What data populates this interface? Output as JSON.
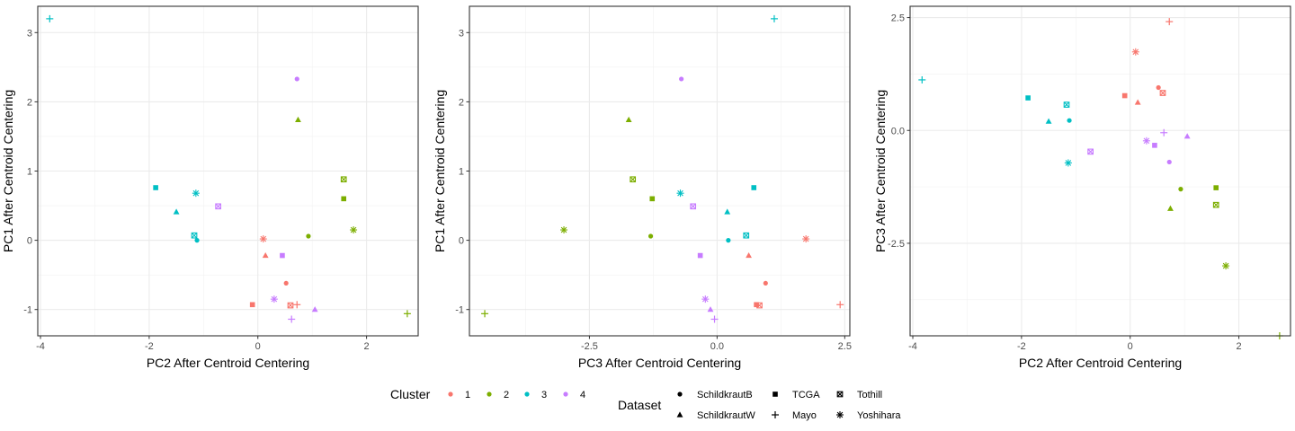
{
  "colors": {
    "1": "#F8766D",
    "2": "#7CAE00",
    "3": "#00BFC4",
    "4": "#C77CFF"
  },
  "legend": {
    "cluster_title": "Cluster",
    "cluster_labels": [
      "1",
      "2",
      "3",
      "4"
    ],
    "dataset_title": "Dataset",
    "dataset_labels": [
      "SchildkrautB",
      "TCGA",
      "Tothill",
      "SchildkrautW",
      "Mayo",
      "Yoshihara"
    ]
  },
  "chart_data": [
    {
      "type": "scatter",
      "title": "",
      "xlabel": "PC2 After Centroid Centering",
      "ylabel": "PC1 After Centroid Centering",
      "xlim": [
        -4.05,
        2.95
      ],
      "ylim": [
        -1.38,
        3.38
      ],
      "xticks": [
        -4,
        -2,
        0,
        2
      ],
      "xticklabels": [
        "-4",
        "-2",
        "0",
        "2"
      ],
      "yticks": [
        -1,
        0,
        1,
        2,
        3
      ],
      "yticklabels": [
        "-1",
        "0",
        "1",
        "2",
        "3"
      ],
      "grid": true,
      "points": [
        {
          "x": -3.83,
          "y": 3.2,
          "cluster": "3",
          "dataset": "Mayo"
        },
        {
          "x": 0.72,
          "y": 2.33,
          "cluster": "4",
          "dataset": "SchildkrautB"
        },
        {
          "x": 0.74,
          "y": 1.74,
          "cluster": "2",
          "dataset": "SchildkrautW"
        },
        {
          "x": 1.58,
          "y": 0.88,
          "cluster": "2",
          "dataset": "Tothill"
        },
        {
          "x": -1.88,
          "y": 0.76,
          "cluster": "3",
          "dataset": "TCGA"
        },
        {
          "x": -1.14,
          "y": 0.68,
          "cluster": "3",
          "dataset": "Yoshihara"
        },
        {
          "x": 1.58,
          "y": 0.6,
          "cluster": "2",
          "dataset": "TCGA"
        },
        {
          "x": -0.73,
          "y": 0.49,
          "cluster": "4",
          "dataset": "Tothill"
        },
        {
          "x": -1.5,
          "y": 0.41,
          "cluster": "3",
          "dataset": "SchildkrautW"
        },
        {
          "x": 1.76,
          "y": 0.15,
          "cluster": "2",
          "dataset": "Yoshihara"
        },
        {
          "x": -1.17,
          "y": 0.07,
          "cluster": "3",
          "dataset": "Tothill"
        },
        {
          "x": 0.93,
          "y": 0.06,
          "cluster": "2",
          "dataset": "SchildkrautB"
        },
        {
          "x": 0.1,
          "y": 0.02,
          "cluster": "1",
          "dataset": "Yoshihara"
        },
        {
          "x": -1.12,
          "y": 0.0,
          "cluster": "3",
          "dataset": "SchildkrautB"
        },
        {
          "x": 0.14,
          "y": -0.22,
          "cluster": "1",
          "dataset": "SchildkrautW"
        },
        {
          "x": 0.45,
          "y": -0.22,
          "cluster": "4",
          "dataset": "TCGA"
        },
        {
          "x": 0.52,
          "y": -0.62,
          "cluster": "1",
          "dataset": "SchildkrautB"
        },
        {
          "x": 0.3,
          "y": -0.85,
          "cluster": "4",
          "dataset": "Yoshihara"
        },
        {
          "x": -0.1,
          "y": -0.93,
          "cluster": "1",
          "dataset": "TCGA"
        },
        {
          "x": 0.72,
          "y": -0.93,
          "cluster": "1",
          "dataset": "Mayo"
        },
        {
          "x": 0.6,
          "y": -0.94,
          "cluster": "1",
          "dataset": "Tothill"
        },
        {
          "x": 1.05,
          "y": -1.0,
          "cluster": "4",
          "dataset": "SchildkrautW"
        },
        {
          "x": 2.75,
          "y": -1.06,
          "cluster": "2",
          "dataset": "Mayo"
        },
        {
          "x": 0.62,
          "y": -1.14,
          "cluster": "4",
          "dataset": "Mayo"
        }
      ]
    },
    {
      "type": "scatter",
      "title": "",
      "xlabel": "PC3 After Centroid Centering",
      "ylabel": "PC1 After Centroid Centering",
      "xlim": [
        -4.85,
        2.6
      ],
      "ylim": [
        -1.38,
        3.38
      ],
      "xticks": [
        -2.5,
        0.0,
        2.5
      ],
      "xticklabels": [
        "-2.5",
        "0.0",
        "2.5"
      ],
      "yticks": [
        -1,
        0,
        1,
        2,
        3
      ],
      "yticklabels": [
        "-1",
        "0",
        "1",
        "2",
        "3"
      ],
      "grid": true,
      "points": [
        {
          "x": 1.12,
          "y": 3.2,
          "cluster": "3",
          "dataset": "Mayo"
        },
        {
          "x": -0.7,
          "y": 2.33,
          "cluster": "4",
          "dataset": "SchildkrautB"
        },
        {
          "x": -1.73,
          "y": 1.74,
          "cluster": "2",
          "dataset": "SchildkrautW"
        },
        {
          "x": -1.65,
          "y": 0.88,
          "cluster": "2",
          "dataset": "Tothill"
        },
        {
          "x": 0.72,
          "y": 0.76,
          "cluster": "3",
          "dataset": "TCGA"
        },
        {
          "x": -0.72,
          "y": 0.68,
          "cluster": "3",
          "dataset": "Yoshihara"
        },
        {
          "x": -1.27,
          "y": 0.6,
          "cluster": "2",
          "dataset": "TCGA"
        },
        {
          "x": -0.47,
          "y": 0.49,
          "cluster": "4",
          "dataset": "Tothill"
        },
        {
          "x": 0.2,
          "y": 0.41,
          "cluster": "3",
          "dataset": "SchildkrautW"
        },
        {
          "x": -3.0,
          "y": 0.15,
          "cluster": "2",
          "dataset": "Yoshihara"
        },
        {
          "x": 0.57,
          "y": 0.07,
          "cluster": "3",
          "dataset": "Tothill"
        },
        {
          "x": -1.3,
          "y": 0.06,
          "cluster": "2",
          "dataset": "SchildkrautB"
        },
        {
          "x": 1.74,
          "y": 0.02,
          "cluster": "1",
          "dataset": "Yoshihara"
        },
        {
          "x": 0.22,
          "y": 0.0,
          "cluster": "3",
          "dataset": "SchildkrautB"
        },
        {
          "x": 0.62,
          "y": -0.22,
          "cluster": "1",
          "dataset": "SchildkrautW"
        },
        {
          "x": -0.33,
          "y": -0.22,
          "cluster": "4",
          "dataset": "TCGA"
        },
        {
          "x": 0.95,
          "y": -0.62,
          "cluster": "1",
          "dataset": "SchildkrautB"
        },
        {
          "x": -0.23,
          "y": -0.85,
          "cluster": "4",
          "dataset": "Yoshihara"
        },
        {
          "x": 0.77,
          "y": -0.93,
          "cluster": "1",
          "dataset": "TCGA"
        },
        {
          "x": 2.41,
          "y": -0.93,
          "cluster": "1",
          "dataset": "Mayo"
        },
        {
          "x": 0.83,
          "y": -0.94,
          "cluster": "1",
          "dataset": "Tothill"
        },
        {
          "x": -0.13,
          "y": -1.0,
          "cluster": "4",
          "dataset": "SchildkrautW"
        },
        {
          "x": -4.55,
          "y": -1.06,
          "cluster": "2",
          "dataset": "Mayo"
        },
        {
          "x": -0.05,
          "y": -1.14,
          "cluster": "4",
          "dataset": "Mayo"
        }
      ]
    },
    {
      "type": "scatter",
      "title": "",
      "xlabel": "PC2 After Centroid Centering",
      "ylabel": "PC3 After Centroid Centering",
      "xlim": [
        -4.05,
        2.95
      ],
      "ylim": [
        -4.55,
        2.75
      ],
      "xticks": [
        -4,
        -2,
        0,
        2
      ],
      "xticklabels": [
        "-4",
        "-2",
        "0",
        "2"
      ],
      "yticks": [
        -2.5,
        0.0,
        2.5
      ],
      "yticklabels": [
        "-2.5",
        "0.0",
        "2.5"
      ],
      "grid": true,
      "points": [
        {
          "x": 0.72,
          "y": 2.41,
          "cluster": "1",
          "dataset": "Mayo"
        },
        {
          "x": 0.1,
          "y": 1.74,
          "cluster": "1",
          "dataset": "Yoshihara"
        },
        {
          "x": -3.83,
          "y": 1.12,
          "cluster": "3",
          "dataset": "Mayo"
        },
        {
          "x": 0.52,
          "y": 0.95,
          "cluster": "1",
          "dataset": "SchildkrautB"
        },
        {
          "x": 0.6,
          "y": 0.83,
          "cluster": "1",
          "dataset": "Tothill"
        },
        {
          "x": -0.1,
          "y": 0.77,
          "cluster": "1",
          "dataset": "TCGA"
        },
        {
          "x": -1.88,
          "y": 0.72,
          "cluster": "3",
          "dataset": "TCGA"
        },
        {
          "x": 0.14,
          "y": 0.62,
          "cluster": "1",
          "dataset": "SchildkrautW"
        },
        {
          "x": -1.17,
          "y": 0.57,
          "cluster": "3",
          "dataset": "Tothill"
        },
        {
          "x": -1.12,
          "y": 0.22,
          "cluster": "3",
          "dataset": "SchildkrautB"
        },
        {
          "x": -1.5,
          "y": 0.2,
          "cluster": "3",
          "dataset": "SchildkrautW"
        },
        {
          "x": 0.62,
          "y": -0.05,
          "cluster": "4",
          "dataset": "Mayo"
        },
        {
          "x": 1.05,
          "y": -0.13,
          "cluster": "4",
          "dataset": "SchildkrautW"
        },
        {
          "x": 0.3,
          "y": -0.23,
          "cluster": "4",
          "dataset": "Yoshihara"
        },
        {
          "x": 0.45,
          "y": -0.33,
          "cluster": "4",
          "dataset": "TCGA"
        },
        {
          "x": -0.73,
          "y": -0.47,
          "cluster": "4",
          "dataset": "Tothill"
        },
        {
          "x": 0.72,
          "y": -0.7,
          "cluster": "4",
          "dataset": "SchildkrautB"
        },
        {
          "x": -1.14,
          "y": -0.72,
          "cluster": "3",
          "dataset": "Yoshihara"
        },
        {
          "x": 1.58,
          "y": -1.27,
          "cluster": "2",
          "dataset": "TCGA"
        },
        {
          "x": 0.93,
          "y": -1.3,
          "cluster": "2",
          "dataset": "SchildkrautB"
        },
        {
          "x": 1.58,
          "y": -1.65,
          "cluster": "2",
          "dataset": "Tothill"
        },
        {
          "x": 0.74,
          "y": -1.73,
          "cluster": "2",
          "dataset": "SchildkrautW"
        },
        {
          "x": 1.76,
          "y": -3.0,
          "cluster": "2",
          "dataset": "Yoshihara"
        },
        {
          "x": 2.75,
          "y": -4.55,
          "cluster": "2",
          "dataset": "Mayo"
        }
      ]
    }
  ]
}
